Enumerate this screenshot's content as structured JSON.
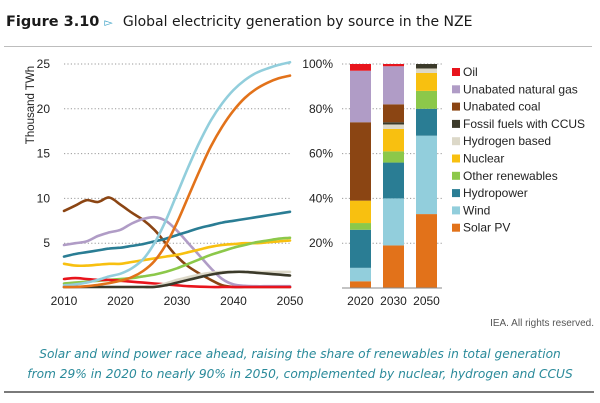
{
  "header": {
    "figure_number": "Figure 3.10",
    "arrow_glyph": "▻",
    "title": "Global electricity generation by source in the NZE"
  },
  "credit": "IEA. All rights reserved.",
  "caption": {
    "line1": "Solar and wind power race ahead, raising the share of renewables in total generation",
    "line2": "from 29% in 2020 to nearly 90% in 2050, complemented by nuclear, hydrogen and CCUS"
  },
  "colors": {
    "Oil": "#e8141c",
    "Unabated natural gas": "#b09cc6",
    "Unabated coal": "#8b4513",
    "Fossil fuels with CCUS": "#3b3a2a",
    "Hydrogen based": "#dcd8c8",
    "Nuclear": "#f8c010",
    "Other renewables": "#8cc84a",
    "Hydropower": "#2a7d94",
    "Wind": "#92cedc",
    "Solar PV": "#e2721a"
  },
  "chart_data": [
    {
      "type": "line",
      "title": "",
      "xlabel": "",
      "ylabel": "Thousand TWh",
      "xlim": [
        2010,
        2050
      ],
      "ylim": [
        0,
        25
      ],
      "x_ticks": [
        "2010",
        "2020",
        "2030",
        "2040",
        "2050"
      ],
      "y_ticks": [
        "5",
        "10",
        "15",
        "20",
        "25"
      ],
      "grid": "horizontal dotted",
      "x": [
        2010,
        2012,
        2014,
        2016,
        2018,
        2020,
        2022,
        2024,
        2026,
        2028,
        2030,
        2032,
        2034,
        2036,
        2038,
        2040,
        2042,
        2044,
        2046,
        2048,
        2050
      ],
      "series": [
        {
          "name": "Unabated coal",
          "values": [
            8.6,
            9.2,
            9.8,
            9.6,
            10.1,
            9.3,
            8.4,
            7.6,
            6.5,
            5.0,
            3.5,
            2.4,
            1.6,
            0.9,
            0.3,
            0.1,
            0.05,
            0.05,
            0.05,
            0.05,
            0.05
          ]
        },
        {
          "name": "Unabated natural gas",
          "values": [
            4.8,
            5.0,
            5.2,
            5.8,
            6.2,
            6.5,
            7.2,
            7.7,
            7.9,
            7.5,
            6.4,
            5.0,
            3.6,
            2.2,
            1.0,
            0.4,
            0.25,
            0.2,
            0.2,
            0.2,
            0.2
          ]
        },
        {
          "name": "Hydropower",
          "values": [
            3.5,
            3.8,
            4.0,
            4.2,
            4.4,
            4.5,
            4.7,
            4.9,
            5.2,
            5.5,
            5.9,
            6.3,
            6.7,
            7.0,
            7.3,
            7.5,
            7.7,
            7.9,
            8.1,
            8.3,
            8.5
          ]
        },
        {
          "name": "Nuclear",
          "values": [
            2.7,
            2.5,
            2.5,
            2.6,
            2.7,
            2.7,
            2.9,
            3.1,
            3.3,
            3.5,
            3.7,
            4.0,
            4.3,
            4.6,
            4.8,
            4.9,
            5.0,
            5.0,
            5.1,
            5.2,
            5.3
          ]
        },
        {
          "name": "Other renewables",
          "values": [
            0.5,
            0.6,
            0.7,
            0.8,
            0.9,
            1.0,
            1.1,
            1.3,
            1.5,
            1.8,
            2.2,
            2.7,
            3.2,
            3.7,
            4.1,
            4.5,
            4.8,
            5.1,
            5.3,
            5.5,
            5.6
          ]
        },
        {
          "name": "Oil",
          "values": [
            1.0,
            1.1,
            1.0,
            0.9,
            0.9,
            0.8,
            0.7,
            0.6,
            0.5,
            0.4,
            0.3,
            0.2,
            0.15,
            0.1,
            0.1,
            0.1,
            0.1,
            0.1,
            0.1,
            0.1,
            0.1
          ]
        },
        {
          "name": "Hydrogen based",
          "values": [
            0,
            0,
            0,
            0,
            0,
            0,
            0,
            0.05,
            0.2,
            0.5,
            0.9,
            1.2,
            1.5,
            1.7,
            1.8,
            1.8,
            1.8,
            1.8,
            1.8,
            1.8,
            1.8
          ]
        },
        {
          "name": "Fossil fuels with CCUS",
          "values": [
            0,
            0,
            0,
            0,
            0,
            0,
            0,
            0.05,
            0.1,
            0.3,
            0.6,
            0.9,
            1.2,
            1.5,
            1.7,
            1.8,
            1.8,
            1.7,
            1.6,
            1.5,
            1.4
          ]
        },
        {
          "name": "Wind",
          "values": [
            0.3,
            0.4,
            0.6,
            0.9,
            1.3,
            1.6,
            2.2,
            3.2,
            5.0,
            7.5,
            10.5,
            13.5,
            16.3,
            18.7,
            20.6,
            22.1,
            23.2,
            24.0,
            24.5,
            24.9,
            25.2
          ]
        },
        {
          "name": "Solar PV",
          "values": [
            0.05,
            0.1,
            0.2,
            0.35,
            0.55,
            0.8,
            1.2,
            1.9,
            3.0,
            4.8,
            7.3,
            10.2,
            13.1,
            15.8,
            18.0,
            19.8,
            21.2,
            22.2,
            22.9,
            23.4,
            23.7
          ]
        }
      ]
    },
    {
      "type": "bar",
      "stacked": true,
      "title": "",
      "xlabel": "",
      "ylabel": "",
      "categories": [
        "2020",
        "2030",
        "2050"
      ],
      "y_ticks": [
        "20%",
        "40%",
        "60%",
        "80%",
        "100%"
      ],
      "ylim": [
        0,
        100
      ],
      "grid": "horizontal dotted",
      "legend_position": "right",
      "legend": [
        "Oil",
        "Unabated natural gas",
        "Unabated coal",
        "Fossil fuels with CCUS",
        "Hydrogen based",
        "Nuclear",
        "Other renewables",
        "Hydropower",
        "Wind",
        "Solar PV"
      ],
      "series": [
        {
          "name": "Solar PV",
          "values": [
            3,
            19,
            33
          ]
        },
        {
          "name": "Wind",
          "values": [
            6,
            21,
            35
          ]
        },
        {
          "name": "Hydropower",
          "values": [
            17,
            16,
            12
          ]
        },
        {
          "name": "Other renewables",
          "values": [
            3,
            5,
            8
          ]
        },
        {
          "name": "Nuclear",
          "values": [
            10,
            10,
            8
          ]
        },
        {
          "name": "Hydrogen based",
          "values": [
            0,
            2,
            2
          ]
        },
        {
          "name": "Fossil fuels with CCUS",
          "values": [
            0,
            1,
            2
          ]
        },
        {
          "name": "Unabated coal",
          "values": [
            35,
            8,
            0
          ]
        },
        {
          "name": "Unabated natural gas",
          "values": [
            23,
            17,
            0
          ]
        },
        {
          "name": "Oil",
          "values": [
            3,
            1,
            0
          ]
        }
      ]
    }
  ]
}
